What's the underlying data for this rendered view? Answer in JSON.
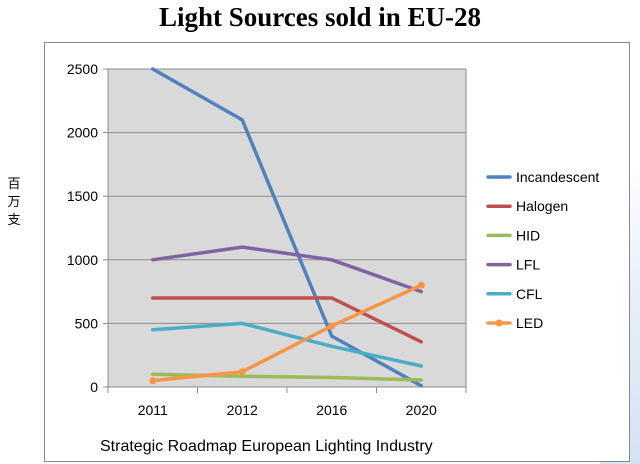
{
  "chart_data": {
    "type": "line",
    "title": "Light Sources sold in EU-28",
    "ylabel_chars": [
      "百",
      "万",
      "支"
    ],
    "xlabel": "",
    "categories": [
      "2011",
      "2012",
      "2016",
      "2020"
    ],
    "ylim": [
      0,
      2500
    ],
    "yticks": [
      "0",
      "500",
      "1000",
      "1500",
      "2000",
      "2500"
    ],
    "grid": true,
    "legend_position": "right",
    "series": [
      {
        "name": "Incandescent",
        "color": "#4f81bd",
        "marker": "none",
        "values": [
          2500,
          2100,
          400,
          10
        ]
      },
      {
        "name": "Halogen",
        "color": "#c0504d",
        "marker": "none",
        "values": [
          700,
          700,
          700,
          355
        ]
      },
      {
        "name": "HID",
        "color": "#9bbb59",
        "marker": "none",
        "values": [
          100,
          85,
          75,
          55
        ]
      },
      {
        "name": "LFL",
        "color": "#8064a2",
        "marker": "none",
        "values": [
          1000,
          1100,
          1000,
          750
        ]
      },
      {
        "name": "CFL",
        "color": "#4bacc6",
        "marker": "none",
        "values": [
          450,
          500,
          320,
          165
        ]
      },
      {
        "name": "LED",
        "color": "#f79646",
        "marker": "circle",
        "values": [
          50,
          120,
          480,
          800
        ]
      }
    ],
    "footer": "Strategic Roadmap European Lighting Industry"
  }
}
